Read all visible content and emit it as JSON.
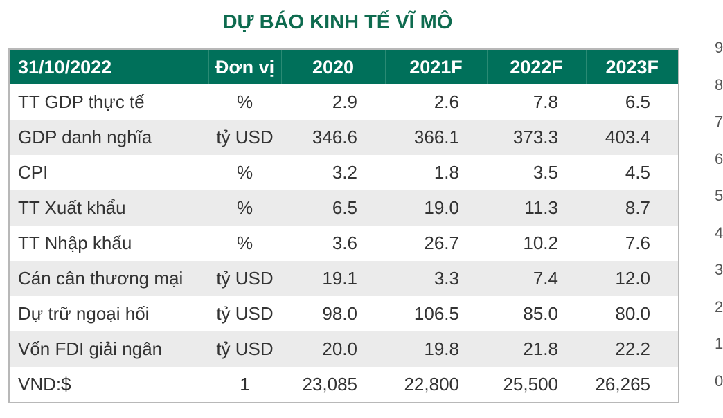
{
  "title": "DỰ BÁO KINH TẾ VĨ MÔ",
  "table": {
    "header": [
      "31/10/2022",
      "Đơn vị",
      "2020",
      "2021F",
      "2022F",
      "2023F"
    ],
    "rows": [
      [
        "TT GDP thực tế",
        "%",
        "2.9",
        "2.6",
        "7.8",
        "6.5"
      ],
      [
        "GDP danh nghĩa",
        "tỷ USD",
        "346.6",
        "366.1",
        "373.3",
        "403.4"
      ],
      [
        "CPI",
        "%",
        "3.2",
        "1.8",
        "3.5",
        "4.5"
      ],
      [
        "TT Xuất khẩu",
        "%",
        "6.5",
        "19.0",
        "11.3",
        "8.7"
      ],
      [
        "TT Nhập khẩu",
        "%",
        "3.6",
        "26.7",
        "10.2",
        "7.6"
      ],
      [
        "Cán cân thương mại",
        "tỷ USD",
        "19.1",
        "3.3",
        "7.4",
        "12.0"
      ],
      [
        "Dự trữ ngoại hối",
        "tỷ USD",
        "98.0",
        "106.5",
        "85.0",
        "80.0"
      ],
      [
        "Vốn FDI giải ngân",
        "tỷ USD",
        "20.0",
        "19.8",
        "21.8",
        "22.2"
      ],
      [
        "VND:$",
        "1",
        "23,085",
        "22,800",
        "25,500",
        "26,265"
      ]
    ]
  },
  "side_axis_fragment": [
    "9",
    "8",
    "7",
    "6",
    "5",
    "4",
    "3",
    "2",
    "1",
    "0"
  ]
}
